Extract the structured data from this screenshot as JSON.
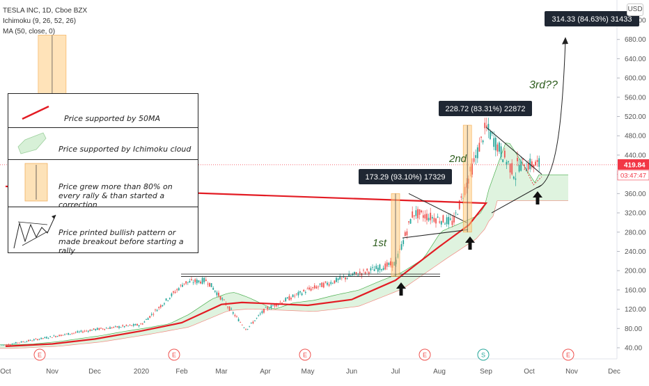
{
  "header": {
    "symbol_line": "TESLA INC, 1D, Cboe BZX",
    "indicator_1": "Ichimoku (9, 26, 52, 26)",
    "indicator_2": "MA (50, close, 0)",
    "currency": "USD"
  },
  "price_labels": {
    "current_price": "419.84",
    "countdown": "03:47:47"
  },
  "legend": {
    "items": [
      {
        "text": "Price supported by 50MA"
      },
      {
        "text": "Price supported by Ichimoku cloud"
      },
      {
        "text": "Price grew more than 80% on every rally & than started a correction"
      },
      {
        "text": "Price printed bullish pattern or made breakout before starting a rally"
      }
    ]
  },
  "annotations": {
    "rally1_box": "173.29 (93.10%) 17329",
    "rally2_box": "228.72 (83.31%) 22872",
    "rally3_box": "314.33 (84.63%) 31433",
    "label_1st": "1st",
    "label_2nd": "2nd",
    "label_3rd": "3rd??"
  },
  "colors": {
    "candle_up": "#26a69a",
    "candle_down": "#ef5350",
    "ma50": "#e31b23",
    "cloud_fill": "#d7f0d7",
    "cloud_span_a": "#4caf50",
    "cloud_span_b": "#f28b82",
    "rally_box": "#ffcc80",
    "current_price": "#f23645"
  },
  "events": [
    "E",
    "E",
    "E",
    "E",
    "S",
    "E"
  ],
  "chart_data": {
    "type": "line",
    "x_tick_labels": [
      "Oct",
      "Nov",
      "Dec",
      "2020",
      "Feb",
      "Mar",
      "Apr",
      "May",
      "Jun",
      "Jul",
      "Aug",
      "Sep",
      "Oct",
      "Nov",
      "Dec"
    ],
    "y_tick_labels": [
      "40.00",
      "80.00",
      "120.00",
      "160.00",
      "200.00",
      "240.00",
      "280.00",
      "320.00",
      "360.00",
      "400.00",
      "440.00",
      "480.00",
      "520.00",
      "560.00",
      "600.00",
      "640.00",
      "680.00",
      "720.00"
    ],
    "ylim": [
      20,
      740
    ],
    "grid": false,
    "series": [
      {
        "name": "MA (50, close, 0)",
        "x": [
          "Oct",
          "Nov",
          "Dec",
          "2020",
          "Feb",
          "Mar",
          "Mar 15",
          "Apr",
          "May",
          "Jun",
          "Jul",
          "Aug",
          "Aug 20",
          "Sep",
          "Oct"
        ],
        "values": [
          43,
          48,
          58,
          75,
          92,
          130,
          134,
          132,
          128,
          140,
          180,
          250,
          295,
          340,
          375
        ]
      },
      {
        "name": "Close",
        "x": [
          "Oct",
          "Nov",
          "Dec",
          "2020",
          "Feb 3",
          "Feb 20",
          "Mar 18",
          "Apr",
          "May",
          "Jun",
          "Jul 1",
          "Jul 13",
          "Aug 10",
          "Aug 31",
          "Sep 22",
          "Oct 1"
        ],
        "values": [
          46,
          63,
          78,
          88,
          175,
          180,
          78,
          120,
          160,
          190,
          215,
          320,
          300,
          498,
          395,
          420
        ]
      }
    ],
    "rallies": [
      {
        "start": "Jul 1",
        "low": 188,
        "high": 360,
        "label": "173.29 (93.10%) 17329"
      },
      {
        "start": "Aug 19",
        "low": 280,
        "high": 502,
        "label": "228.72 (83.31%) 22872"
      },
      {
        "start": "Oct 22",
        "low": 375,
        "high": 689,
        "label": "314.33 (84.63%) 31433"
      }
    ],
    "current_price": 419.84
  }
}
